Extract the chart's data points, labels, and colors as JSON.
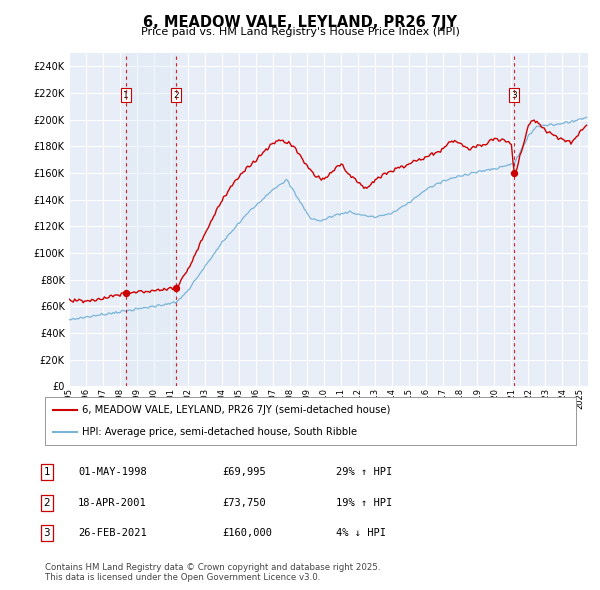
{
  "title": "6, MEADOW VALE, LEYLAND, PR26 7JY",
  "subtitle": "Price paid vs. HM Land Registry's House Price Index (HPI)",
  "ylim": [
    0,
    250000
  ],
  "yticks": [
    0,
    20000,
    40000,
    60000,
    80000,
    100000,
    120000,
    140000,
    160000,
    180000,
    200000,
    220000,
    240000
  ],
  "sale_dates_num": [
    1998.33,
    2001.3,
    2021.15
  ],
  "sale_prices": [
    69995,
    73750,
    160000
  ],
  "sale_labels": [
    "1",
    "2",
    "3"
  ],
  "hpi_color": "#7ab4d8",
  "price_color": "#cc0000",
  "sale_marker_color": "#cc0000",
  "vline_color": "#cc0000",
  "shade_color": "#dce9f5",
  "legend_price_label": "6, MEADOW VALE, LEYLAND, PR26 7JY (semi-detached house)",
  "legend_hpi_label": "HPI: Average price, semi-detached house, South Ribble",
  "table_entries": [
    {
      "num": "1",
      "date": "01-MAY-1998",
      "price": "£69,995",
      "rel": "29% ↑ HPI"
    },
    {
      "num": "2",
      "date": "18-APR-2001",
      "price": "£73,750",
      "rel": "19% ↑ HPI"
    },
    {
      "num": "3",
      "date": "26-FEB-2021",
      "price": "£160,000",
      "rel": "4% ↓ HPI"
    }
  ],
  "footer": "Contains HM Land Registry data © Crown copyright and database right 2025.\nThis data is licensed under the Open Government Licence v3.0.",
  "chart_bg": "#e8eef8"
}
